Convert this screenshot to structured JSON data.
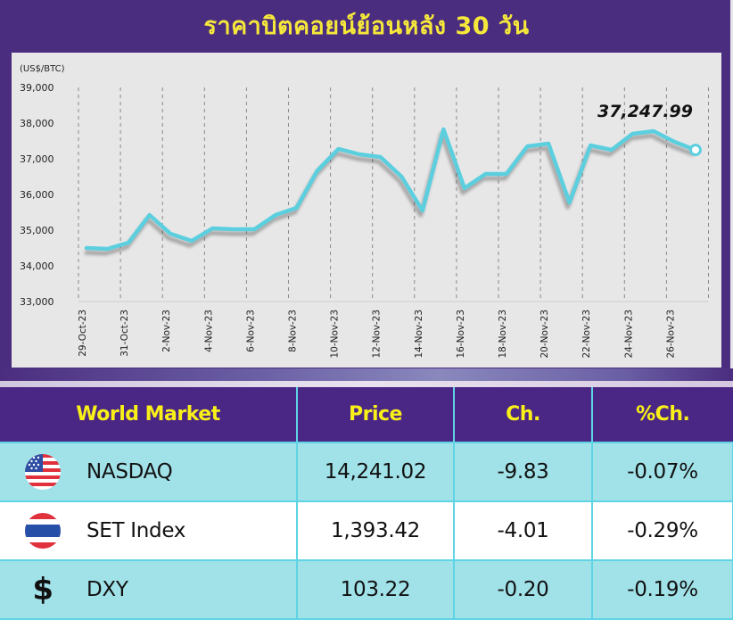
{
  "title": "ราคาบิตคอยน์ย้อนหลัง 30 วัน",
  "colors": {
    "frame_purple": "#4b2d7f",
    "title_yellow": "#f5e83a",
    "line_cyan": "#5ccfdf",
    "panel_gray": "#e7e7e8",
    "header_purple": "#4b2785",
    "header_yellow": "#f8f018",
    "row_cyan": "#a1e1e8"
  },
  "chart_data": {
    "type": "line",
    "title": "ราคาบิตคอยน์ย้อนหลัง 30 วัน",
    "ylabel": "(US$/BTC)",
    "xlabel": "",
    "ylim": [
      33000,
      39000
    ],
    "yticks": [
      "39,000",
      "38,000",
      "37,000",
      "36,000",
      "35,000",
      "34,000",
      "33,000"
    ],
    "xticks": [
      "29-Oct-23",
      "31-Oct-23",
      "2-Nov-23",
      "4-Nov-23",
      "6-Nov-23",
      "8-Nov-23",
      "10-Nov-23",
      "12-Nov-23",
      "14-Nov-23",
      "16-Nov-23",
      "18-Nov-23",
      "20-Nov-23",
      "22-Nov-23",
      "24-Nov-23",
      "26-Nov-23"
    ],
    "grid": "vertical dashed",
    "x": [
      "29-Oct-23",
      "30-Oct-23",
      "31-Oct-23",
      "1-Nov-23",
      "2-Nov-23",
      "3-Nov-23",
      "4-Nov-23",
      "5-Nov-23",
      "6-Nov-23",
      "7-Nov-23",
      "8-Nov-23",
      "9-Nov-23",
      "10-Nov-23",
      "11-Nov-23",
      "12-Nov-23",
      "13-Nov-23",
      "14-Nov-23",
      "15-Nov-23",
      "16-Nov-23",
      "17-Nov-23",
      "18-Nov-23",
      "19-Nov-23",
      "20-Nov-23",
      "21-Nov-23",
      "22-Nov-23",
      "23-Nov-23",
      "24-Nov-23",
      "25-Nov-23",
      "26-Nov-23",
      "27-Nov-23"
    ],
    "series": [
      {
        "name": "BTC Price",
        "values": [
          34500,
          34475,
          34650,
          35425,
          34900,
          34700,
          35050,
          35025,
          35025,
          35425,
          35625,
          36675,
          37275,
          37125,
          37050,
          36500,
          35550,
          37825,
          36175,
          36575,
          36575,
          37350,
          37425,
          35775,
          37375,
          37250,
          37700,
          37775,
          37475,
          37247.99
        ]
      }
    ],
    "annotation": "37,247.99",
    "legend": "none"
  },
  "table": {
    "headers": [
      "World Market",
      "Price",
      "Ch.",
      "%Ch."
    ],
    "rows": [
      {
        "icon": "us-flag-icon",
        "market": "NASDAQ",
        "price": "14,241.02",
        "change": "-9.83",
        "pct_change": "-0.07%"
      },
      {
        "icon": "thai-flag-icon",
        "market": "SET Index",
        "price": "1,393.42",
        "change": "-4.01",
        "pct_change": "-0.29%"
      },
      {
        "icon": "dollar-icon",
        "icon_glyph": "$",
        "market": "DXY",
        "price": "103.22",
        "change": "-0.20",
        "pct_change": "-0.19%"
      }
    ]
  }
}
